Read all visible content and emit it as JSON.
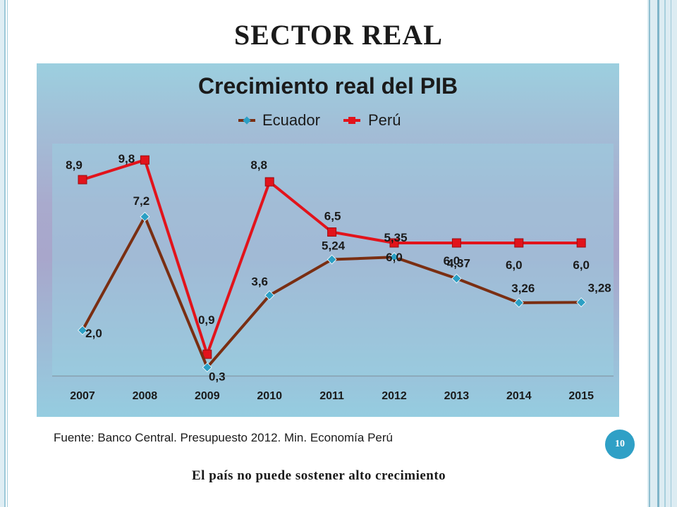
{
  "slide": {
    "title": "SECTOR REAL",
    "source": "Fuente: Banco Central. Presupuesto 2012. Min. Economía Perú",
    "page_number": "10",
    "conclusion": "El país no puede sostener alto crecimiento"
  },
  "colors": {
    "ecuador_line": "#7a2e12",
    "ecuador_marker": "#2b9fc4",
    "peru": "#e2131b",
    "badge": "#2fa0c6"
  },
  "chart_data": {
    "type": "line",
    "title": "Crecimiento real del PIB",
    "xlabel": "",
    "ylabel": "",
    "legend_position": "top",
    "grid": false,
    "ylim": [
      0,
      10
    ],
    "categories": [
      "2007",
      "2008",
      "2009",
      "2010",
      "2011",
      "2012",
      "2013",
      "2014",
      "2015"
    ],
    "series": [
      {
        "name": "Ecuador",
        "values": [
          2.0,
          7.2,
          0.3,
          3.6,
          5.24,
          5.35,
          4.37,
          3.26,
          3.28
        ],
        "labels": [
          "2,0",
          "7,2",
          "0,3",
          "3,6",
          "5,24",
          "5,35",
          "4,37",
          "3,26",
          "3,28"
        ]
      },
      {
        "name": "Perú",
        "values": [
          8.9,
          9.8,
          0.9,
          8.8,
          6.5,
          6.0,
          6.0,
          6.0,
          6.0
        ],
        "labels": [
          "8,9",
          "9,8",
          "0,9",
          "8,8",
          "6,5",
          "6,0",
          "6,0",
          "6,0",
          "6,0"
        ]
      }
    ]
  }
}
